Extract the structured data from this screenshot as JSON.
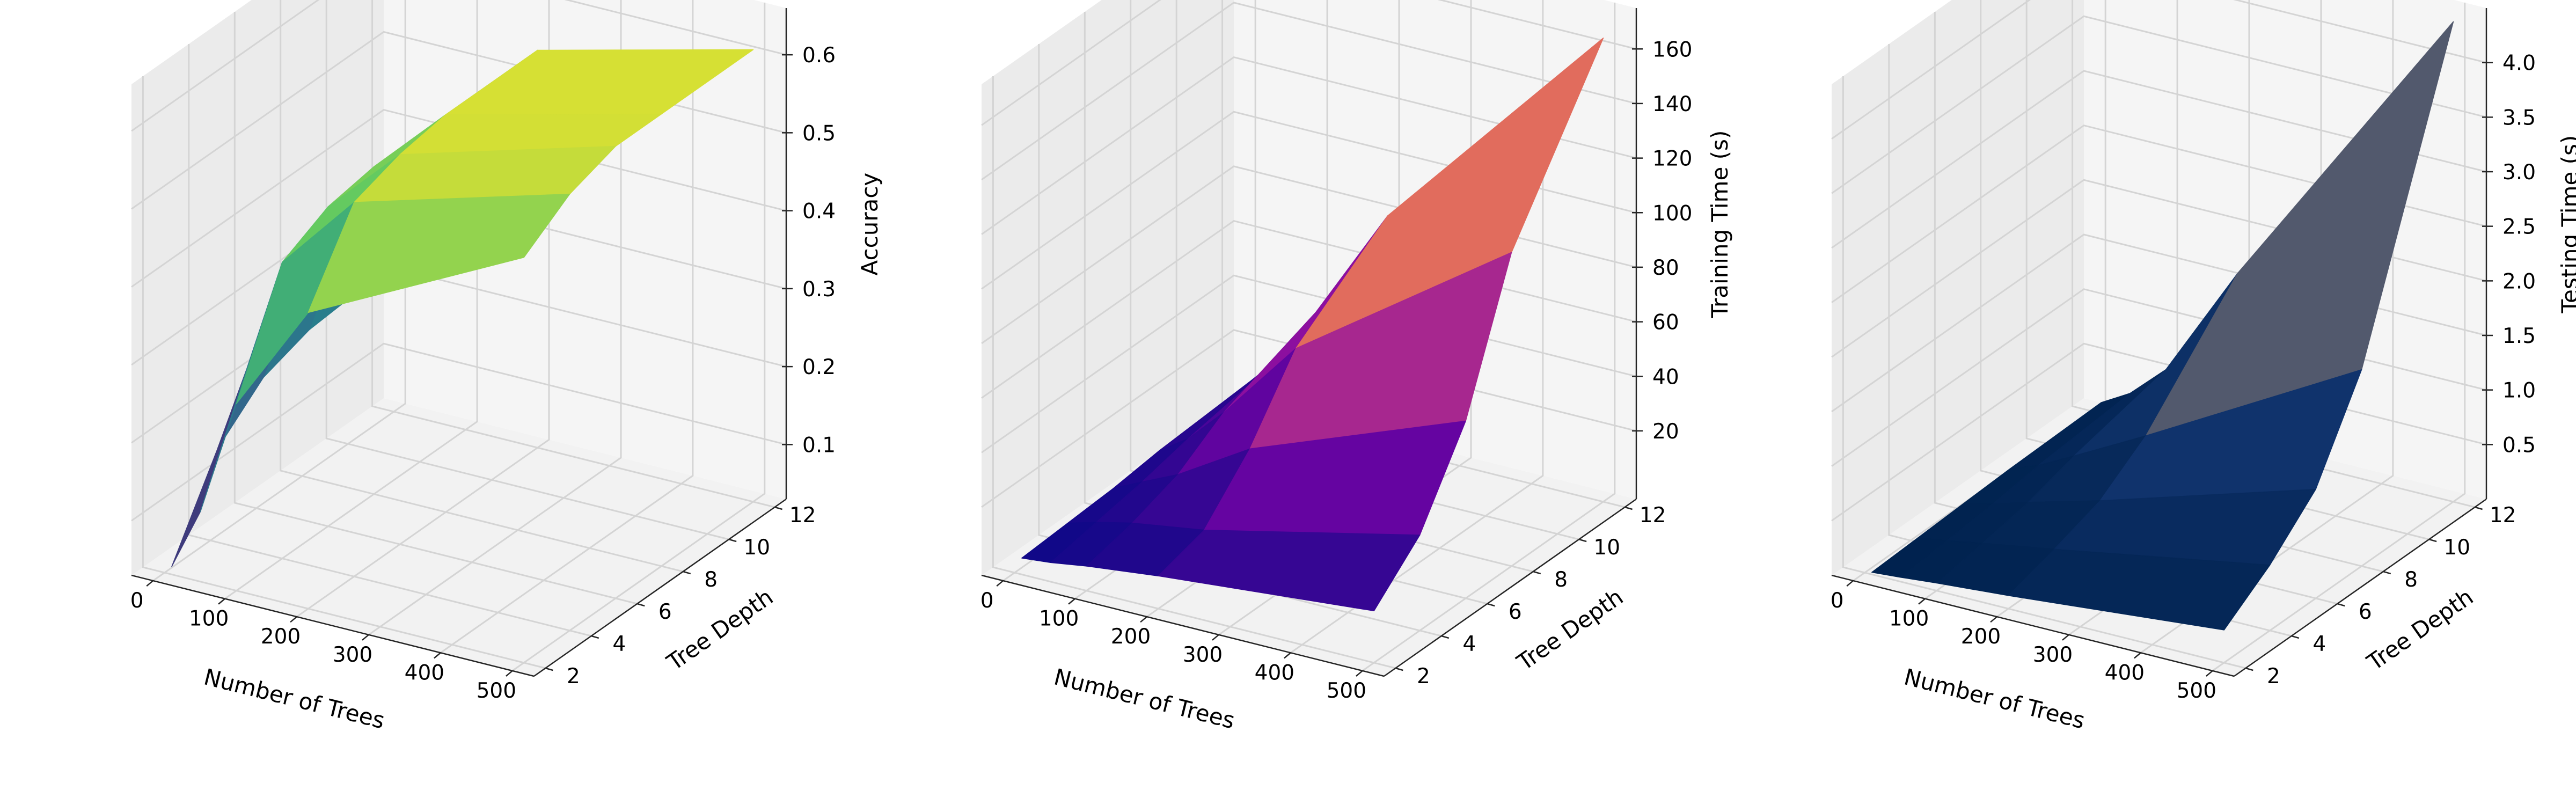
{
  "chart_data": [
    {
      "type": "surface",
      "x": [
        10,
        50,
        100,
        200,
        500
      ],
      "y": [
        2,
        4,
        6,
        8,
        12
      ],
      "xlabel": "Number of Trees",
      "ylabel": "Tree Depth",
      "zlabel": "Accuracy",
      "xlim": [
        -30,
        530
      ],
      "ylim": [
        1.5,
        12.5
      ],
      "zlim": [
        0.03,
        0.66
      ],
      "xticks": [
        "0",
        "100",
        "200",
        "300",
        "400",
        "500"
      ],
      "yticks": [
        "2",
        "4",
        "6",
        "8",
        "10",
        "12"
      ],
      "zticks": [
        "0.1",
        "0.2",
        "0.3",
        "0.4",
        "0.5",
        "0.6"
      ],
      "colormap": [
        "#440154",
        "#3b528b",
        "#21918c",
        "#5ec962",
        "#fde725"
      ],
      "z": [
        [
          0.04,
          0.12,
          0.27,
          0.41,
          0.55
        ],
        [
          0.15,
          0.26,
          0.41,
          0.51,
          0.59
        ],
        [
          0.2,
          0.31,
          0.44,
          0.53,
          0.61
        ],
        [
          0.22,
          0.33,
          0.45,
          0.54,
          0.61
        ],
        [
          0.23,
          0.34,
          0.45,
          0.54,
          0.61
        ]
      ]
    },
    {
      "type": "surface",
      "x": [
        10,
        50,
        100,
        200,
        500
      ],
      "y": [
        2,
        4,
        6,
        8,
        12
      ],
      "xlabel": "Number of Trees",
      "ylabel": "Tree Depth",
      "zlabel": "Training Time (s)",
      "xlim": [
        -30,
        530
      ],
      "ylim": [
        1.5,
        12.5
      ],
      "zlim": [
        -5,
        175
      ],
      "xticks": [
        "0",
        "100",
        "200",
        "300",
        "400",
        "500"
      ],
      "yticks": [
        "2",
        "4",
        "6",
        "8",
        "10",
        "12"
      ],
      "zticks": [
        "20",
        "40",
        "60",
        "80",
        "100",
        "120",
        "140",
        "160"
      ],
      "colormap": [
        "#0d0887",
        "#7e03a8",
        "#cc4778",
        "#f89540",
        "#f0f921"
      ],
      "z": [
        [
          1,
          2,
          4,
          7,
          14
        ],
        [
          2,
          5,
          8,
          12,
          30
        ],
        [
          3,
          8,
          14,
          30,
          60
        ],
        [
          5,
          12,
          25,
          55,
          110
        ],
        [
          7,
          18,
          38,
          80,
          165
        ]
      ]
    },
    {
      "type": "surface",
      "x": [
        10,
        50,
        100,
        200,
        500
      ],
      "y": [
        2,
        4,
        6,
        8,
        12
      ],
      "xlabel": "Number of Trees",
      "ylabel": "Tree Depth",
      "zlabel": "Testing Time (s)",
      "xlim": [
        -30,
        530
      ],
      "ylim": [
        1.5,
        12.5
      ],
      "zlim": [
        0.0,
        4.5
      ],
      "xticks": [
        "0",
        "100",
        "200",
        "300",
        "400",
        "500"
      ],
      "yticks": [
        "2",
        "4",
        "6",
        "8",
        "10",
        "12"
      ],
      "zticks": [
        "0.5",
        "1.0",
        "1.5",
        "2.0",
        "2.5",
        "3.0",
        "3.5",
        "4.0"
      ],
      "colormap": [
        "#00224e",
        "#123570",
        "#575c6d",
        "#a59c74",
        "#fee838"
      ],
      "z": [
        [
          0.02,
          0.04,
          0.07,
          0.12,
          0.3
        ],
        [
          0.04,
          0.08,
          0.14,
          0.25,
          0.6
        ],
        [
          0.06,
          0.12,
          0.22,
          0.4,
          1.0
        ],
        [
          0.08,
          0.18,
          0.35,
          0.7,
          1.8
        ],
        [
          0.1,
          0.25,
          0.55,
          1.6,
          4.4
        ]
      ]
    }
  ]
}
